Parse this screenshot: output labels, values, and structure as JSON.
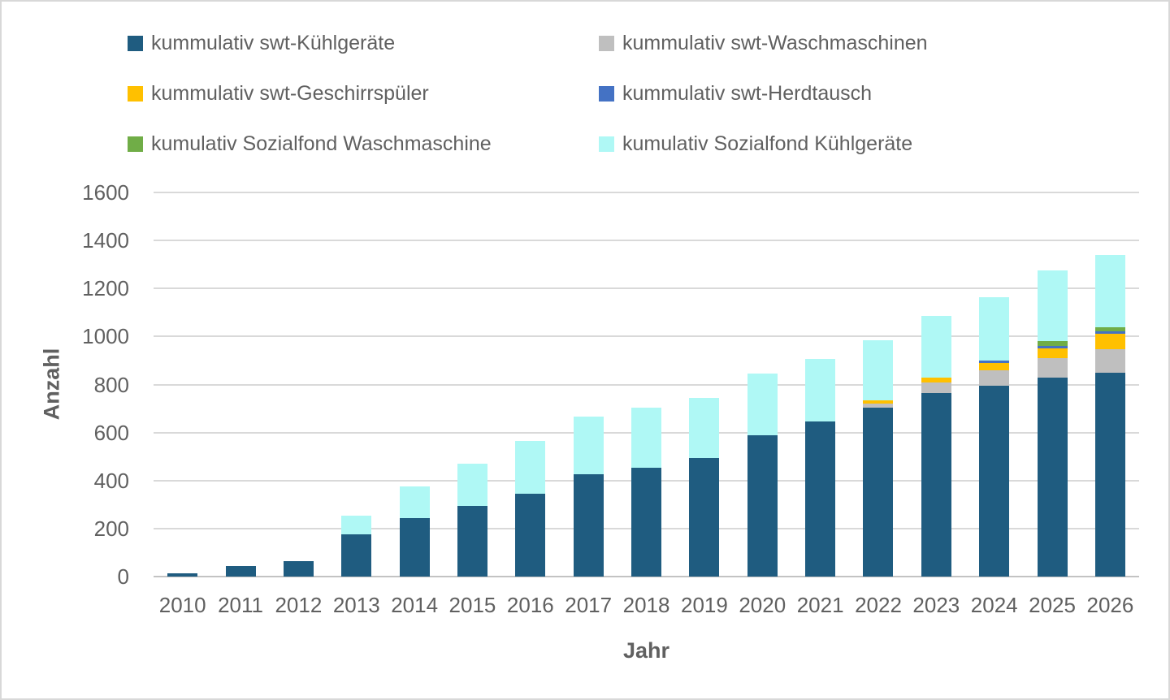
{
  "chart_data": {
    "type": "bar",
    "stacked": true,
    "title": "",
    "xlabel": "Jahr",
    "ylabel": "Anzahl",
    "ylim": [
      0,
      1600
    ],
    "ystep": 200,
    "grid": true,
    "legend_position": "top",
    "categories": [
      "2010",
      "2011",
      "2012",
      "2013",
      "2014",
      "2015",
      "2016",
      "2017",
      "2018",
      "2019",
      "2020",
      "2021",
      "2022",
      "2023",
      "2024",
      "2025",
      "2026"
    ],
    "series": [
      {
        "name": "kummulativ swt-Kühlgeräte",
        "color": "#1F5C80",
        "values": [
          15,
          45,
          63,
          175,
          245,
          295,
          345,
          425,
          455,
          495,
          590,
          645,
          705,
          765,
          795,
          830,
          850
        ]
      },
      {
        "name": "kummulativ swt-Waschmaschinen",
        "color": "#BFBFBF",
        "values": [
          0,
          0,
          0,
          0,
          0,
          0,
          0,
          0,
          0,
          0,
          0,
          0,
          15,
          45,
          63,
          80,
          98
        ]
      },
      {
        "name": "kummulativ swt-Geschirrspüler",
        "color": "#FFC000",
        "values": [
          0,
          0,
          0,
          0,
          0,
          0,
          0,
          0,
          0,
          0,
          0,
          0,
          15,
          20,
          31,
          42,
          62
        ]
      },
      {
        "name": "kummulativ swt-Herdtausch",
        "color": "#4472C4",
        "values": [
          0,
          0,
          0,
          0,
          0,
          0,
          0,
          0,
          0,
          0,
          0,
          0,
          0,
          0,
          10,
          10,
          10
        ]
      },
      {
        "name": "kumulativ Sozialfond Waschmaschine",
        "color": "#70AD47",
        "values": [
          0,
          0,
          0,
          0,
          0,
          0,
          0,
          0,
          0,
          0,
          0,
          0,
          0,
          0,
          0,
          20,
          20
        ]
      },
      {
        "name": "kumulativ Sozialfond Kühlgeräte",
        "color": "#AFF8F5",
        "values": [
          0,
          0,
          0,
          80,
          130,
          175,
          220,
          240,
          250,
          250,
          255,
          260,
          250,
          255,
          266,
          293,
          300
        ]
      }
    ]
  },
  "colors": {
    "text": "#606060",
    "gridline": "#D9D9D9",
    "baseline": "#C3C3C3",
    "background": "#FFFFFF",
    "border": "#D8D8D8"
  }
}
